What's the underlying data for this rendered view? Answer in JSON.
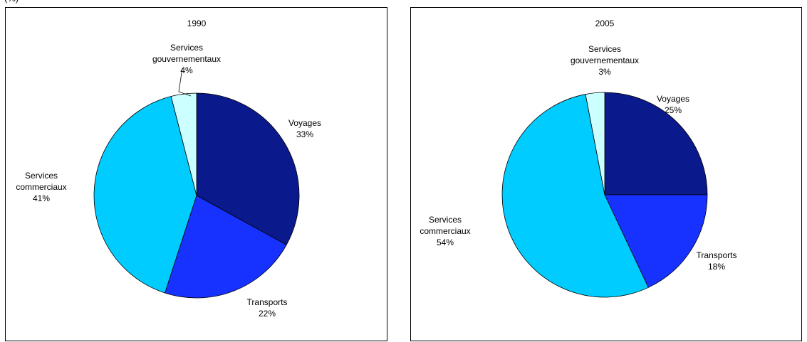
{
  "header": {
    "cut_title": "(%)"
  },
  "chart_data": [
    {
      "type": "pie",
      "title": "1990",
      "categories": [
        "Voyages",
        "Transports",
        "Services commerciaux",
        "Services gouvernementaux"
      ],
      "values": [
        33,
        22,
        41,
        4
      ],
      "colors": [
        "#0a1a8c",
        "#1732ff",
        "#00ccff",
        "#ccffff"
      ],
      "labels": [
        {
          "lines": [
            "Voyages",
            "33%"
          ]
        },
        {
          "lines": [
            "Transports",
            "22%"
          ]
        },
        {
          "lines": [
            "Services",
            "commerciaux",
            "41%"
          ]
        },
        {
          "lines": [
            "Services",
            "gouvernementaux",
            "4%"
          ]
        }
      ]
    },
    {
      "type": "pie",
      "title": "2005",
      "categories": [
        "Voyages",
        "Transports",
        "Services commerciaux",
        "Services gouvernementaux"
      ],
      "values": [
        25,
        18,
        54,
        3
      ],
      "colors": [
        "#0a1a8c",
        "#1732ff",
        "#00ccff",
        "#ccffff"
      ],
      "labels": [
        {
          "lines": [
            "Voyages",
            "25%"
          ]
        },
        {
          "lines": [
            "Transports",
            "18%"
          ]
        },
        {
          "lines": [
            "Services",
            "commerciaux",
            "54%"
          ]
        },
        {
          "lines": [
            "Services",
            "gouvernementaux",
            "3%"
          ]
        }
      ]
    }
  ]
}
